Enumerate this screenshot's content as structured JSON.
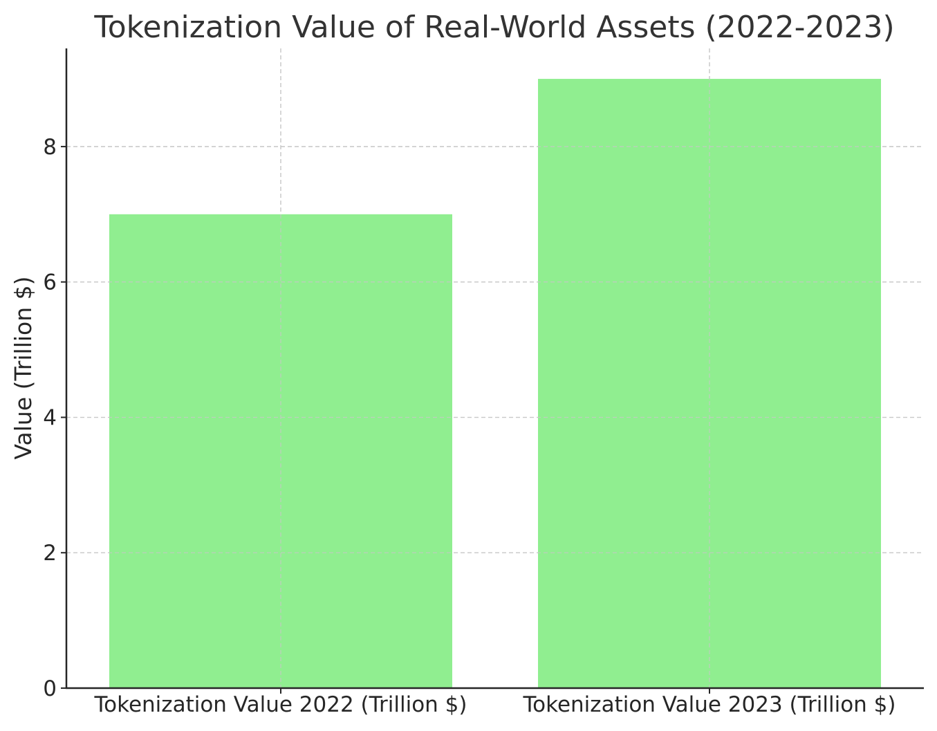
{
  "chart_data": {
    "type": "bar",
    "title": "Tokenization Value of Real-World Assets (2022-2023)",
    "xlabel": "",
    "ylabel": "Value (Trillion $)",
    "categories": [
      "Tokenization Value 2022 (Trillion $)",
      "Tokenization Value 2023 (Trillion $)"
    ],
    "values": [
      7,
      9
    ],
    "ylim": [
      0,
      9.45
    ],
    "yticks": [
      0,
      2,
      4,
      6,
      8
    ],
    "grid": true,
    "bar_color": "#90ee90"
  }
}
